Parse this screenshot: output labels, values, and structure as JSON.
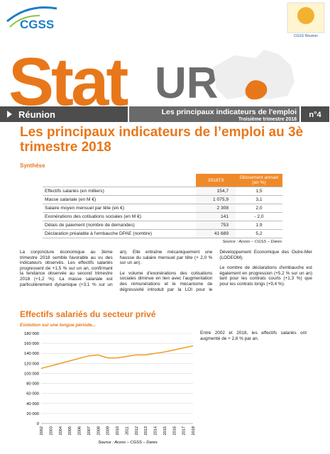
{
  "header": {
    "logo": "CGSS",
    "logo_right": "CGSS Réunion",
    "brand_left": "Stat",
    "brand_right": "UR",
    "region": "Réunion",
    "banner_title": "Les principaux indicateurs de l'emploi",
    "banner_period": "Troisième trimestre 2018",
    "issue": "n°4"
  },
  "title": "Les principaux indicateurs de l’emploi au 3è trimestre 2018",
  "subtitle": "Synthèse",
  "table": {
    "header": [
      "2018T3",
      "Glissement annuel (en %)"
    ],
    "rows": [
      [
        "Effectifs salariés (en milliers)",
        "154,7",
        "1,5"
      ],
      [
        "Masse salariale (en M €)",
        "1 075,9",
        "3,1"
      ],
      [
        "Salaire moyen mensuel par tête (en €)",
        "2 308",
        "2,0"
      ],
      [
        "Exonérations des cotisations sociales (en M €)",
        "141",
        "- 2,0"
      ],
      [
        "Délais de paiement (nombre de demandes)",
        "753",
        "1,9"
      ],
      [
        "Déclaration préalable à l'embauche DPAE (nombre)",
        "41 689",
        "5,2"
      ]
    ],
    "source": "Source : Acoss – CGSS – Dares"
  },
  "paragraphs": [
    "La conjoncture économique au 3ème trimestre 2018 semble favorable au vu des indicateurs observés. Les effectifs salariés progressent de +1,5 % sur un an, confirmant la tendance observée au second trimestre 2018 (+1,2 %). La masse salariale est particulièrement dynamique (+3,1 % sur un an). Elle entraîne mécaniquement une hausse du salaire mensuel par tête (+ 2,0 % sur un an).",
    "Le volume d'exonérations des cotisations sociales diminue en lien avec l'augmentation des rémunérations et le mécanisme de dégressivité introduit par la LOI pour le Développement Economique des Outre-Mer (LODEOM).",
    "Le nombre de déclarations d'embauche est également en progression (+5,2 % sur un an) tant pour les contrats courts (+1,3 %) que pour les contrats longs (+9,4 %)."
  ],
  "section_title": "Effectifs salariés du secteur privé",
  "side_text": "Entre 2002 et 2018, les effectifs salariés ont augmenté de + 2,6 % par an.",
  "chart_data": {
    "type": "line",
    "subtitle": "Evolution sur une longue période...",
    "categories": [
      "2002",
      "2003",
      "2004",
      "2005",
      "2006",
      "2007",
      "2008",
      "2009",
      "2010",
      "2011",
      "2012",
      "2013",
      "2014",
      "2015",
      "2016",
      "2017",
      "2018"
    ],
    "series": [
      {
        "name": "Effectifs salariés",
        "color": "#f0a030",
        "values": [
          110000,
          115000,
          120000,
          125000,
          130000,
          135000,
          137000,
          131000,
          131000,
          134000,
          137000,
          137000,
          140000,
          143000,
          147000,
          151000,
          155000
        ]
      }
    ],
    "ylim": [
      0,
      180000
    ],
    "yticks": [
      0,
      {
        "value": 20000,
        "label": "20 000"
      },
      {
        "value": 40000,
        "label": "40 000"
      },
      {
        "value": 60000,
        "label": "60 000"
      },
      {
        "value": 80000,
        "label": "80 000"
      },
      {
        "value": 100000,
        "label": "100 000"
      },
      {
        "value": 120000,
        "label": "120 000"
      },
      {
        "value": 140000,
        "label": "140 000"
      },
      {
        "value": 160000,
        "label": "160 000"
      },
      {
        "value": 180000,
        "label": "180 000"
      }
    ],
    "grid": true,
    "source": "Source : Acoss – CGSS – Dares"
  }
}
